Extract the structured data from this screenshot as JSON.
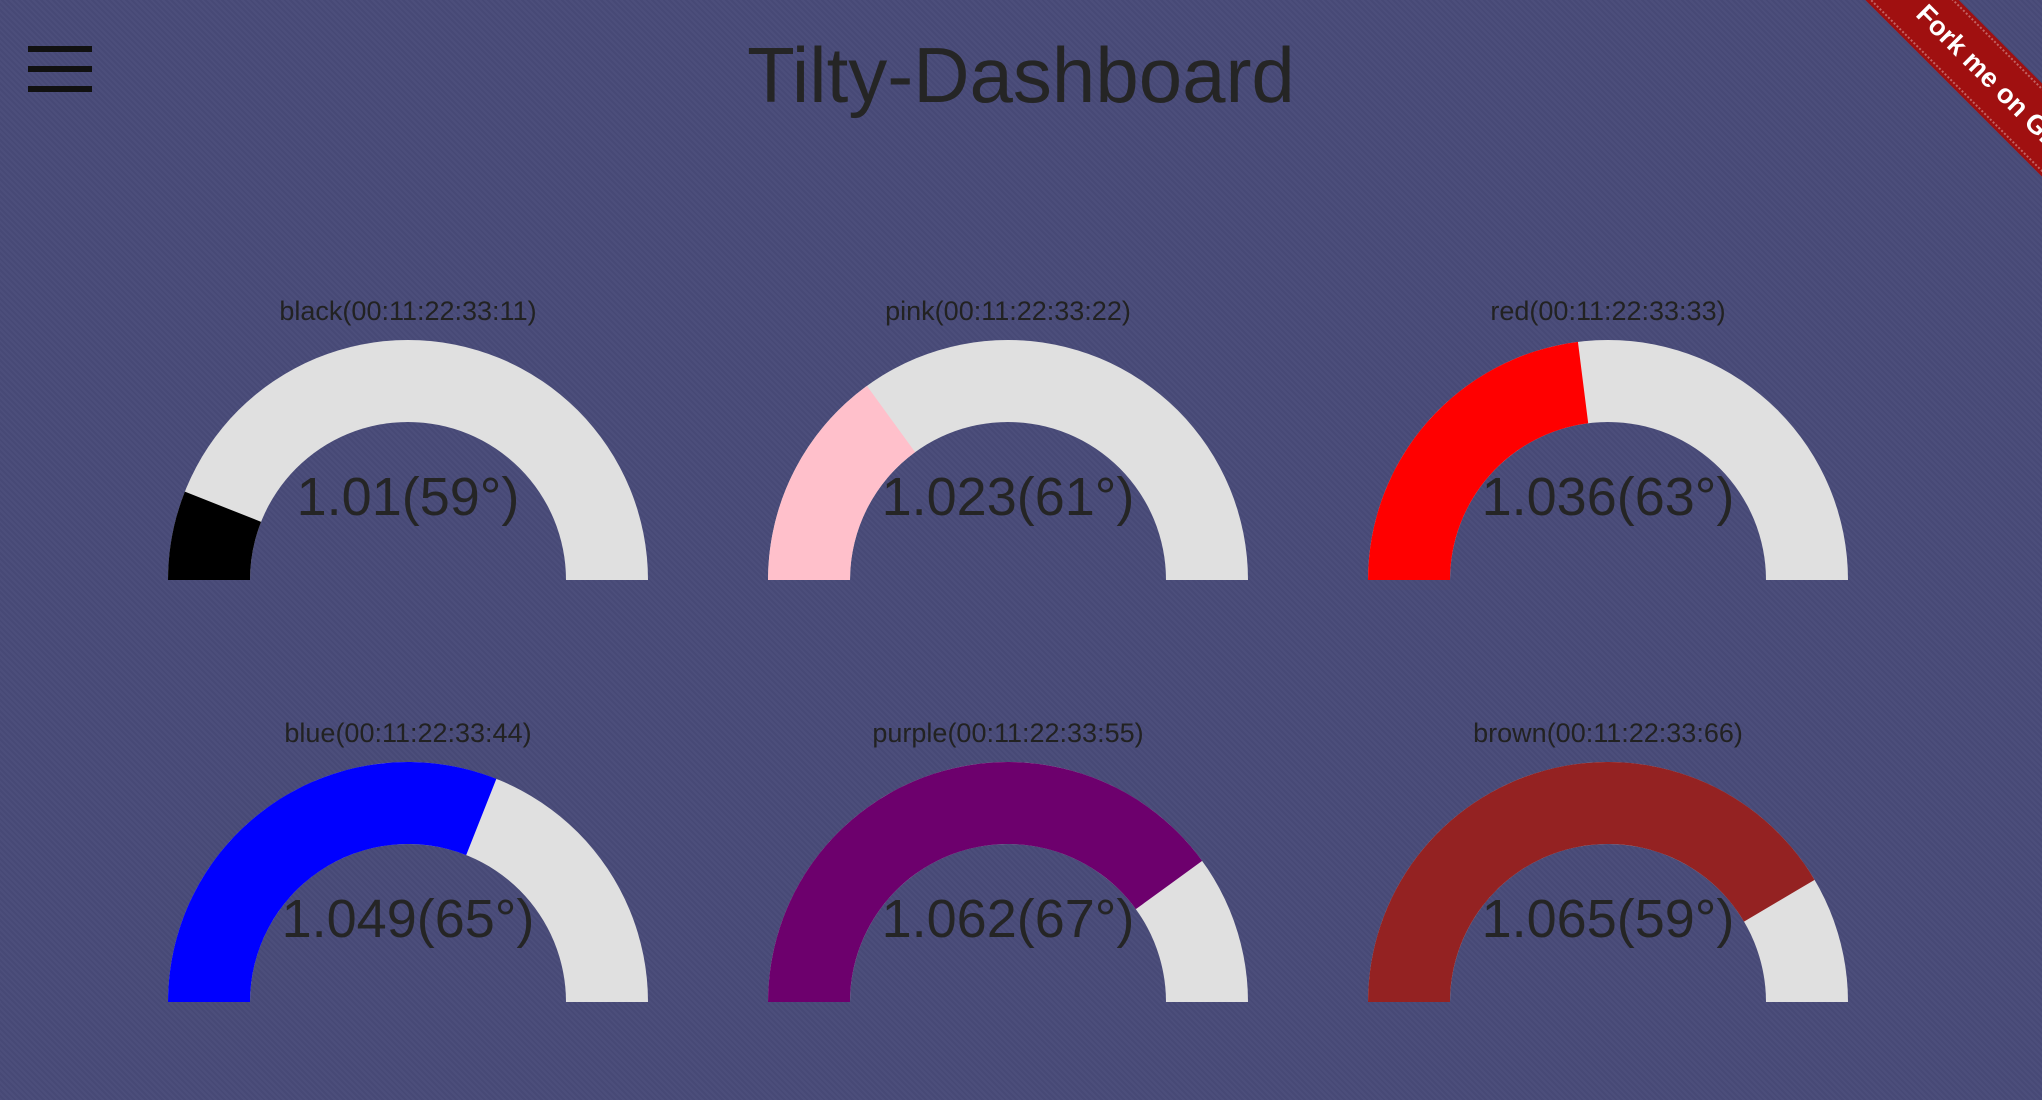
{
  "header": {
    "title": "Tilty-Dashboard",
    "menu_icon": "hamburger-menu-icon"
  },
  "ribbon": {
    "label": "Fork me on GitHub",
    "color": "#a01010"
  },
  "colors": {
    "background": "#484a78",
    "gauge_track": "#e0e0e0"
  },
  "gauges": [
    {
      "label": "black(00:11:22:33:11)",
      "value": "1.01(59°)",
      "fill_fraction": 0.12,
      "color": "#000000"
    },
    {
      "label": "pink(00:11:22:33:22)",
      "value": "1.023(61°)",
      "fill_fraction": 0.3,
      "color": "#ffc0cb"
    },
    {
      "label": "red(00:11:22:33:33)",
      "value": "1.036(63°)",
      "fill_fraction": 0.46,
      "color": "#ff0000"
    },
    {
      "label": "blue(00:11:22:33:44)",
      "value": "1.049(65°)",
      "fill_fraction": 0.62,
      "color": "#0000ff"
    },
    {
      "label": "purple(00:11:22:33:55)",
      "value": "1.062(67°)",
      "fill_fraction": 0.8,
      "color": "#6d006d"
    },
    {
      "label": "brown(00:11:22:33:66)",
      "value": "1.065(59°)",
      "fill_fraction": 0.83,
      "color": "#942222"
    }
  ]
}
